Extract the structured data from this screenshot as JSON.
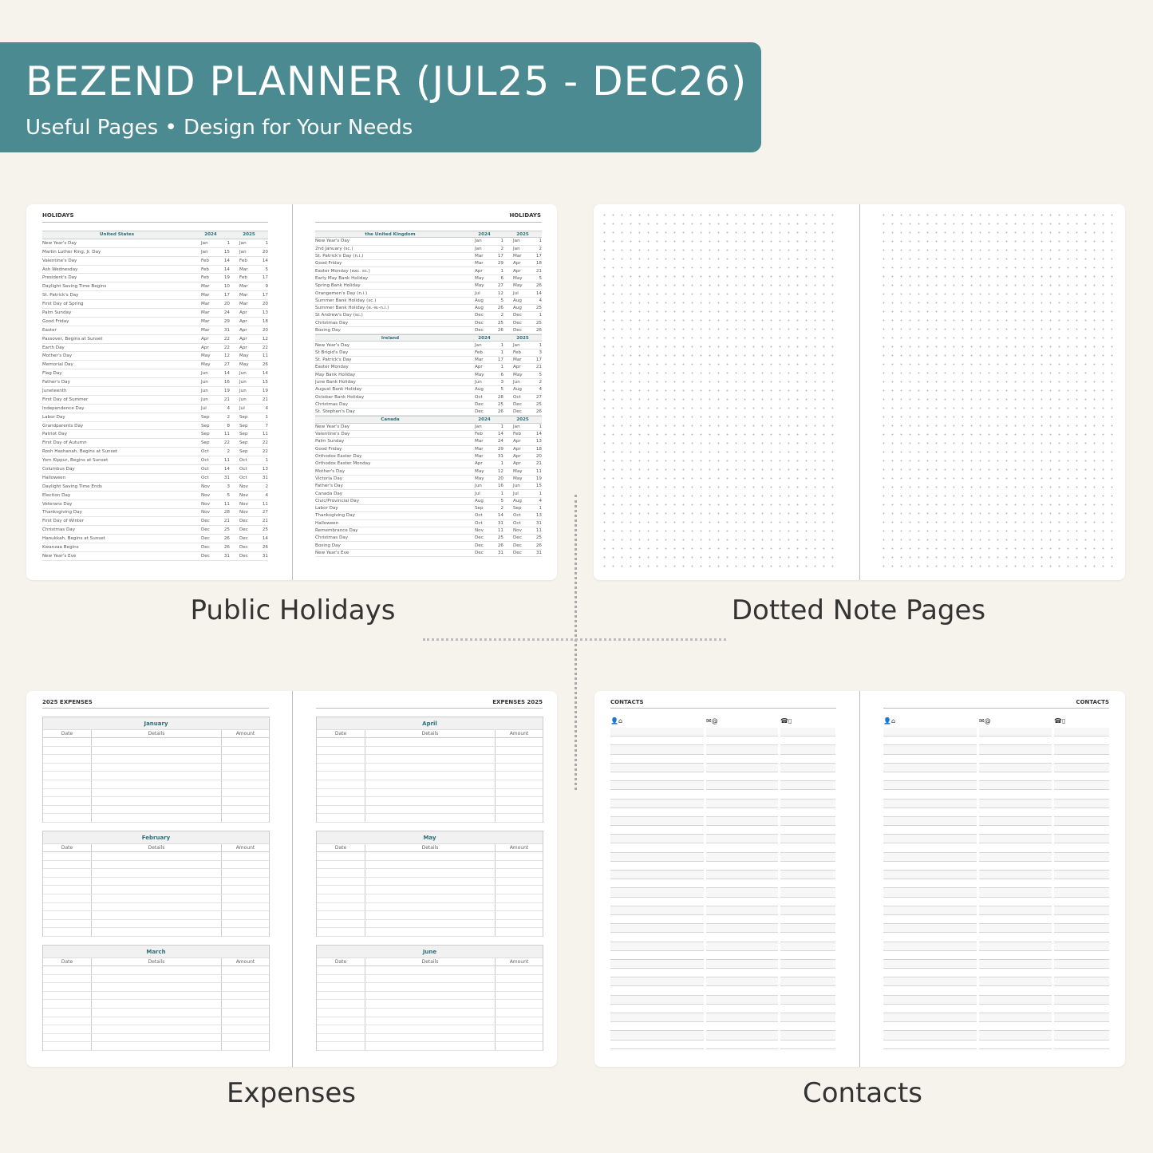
{
  "header": {
    "title": "BEZEND PLANNER (JUL25 - DEC26)",
    "subtitle": "Useful Pages  •  Design for Your Needs"
  },
  "colors": {
    "accent": "#4b8a91",
    "background": "#f6f3ec",
    "heading_teal": "#2d6f77"
  },
  "captions": {
    "holidays": "Public Holidays",
    "dotted": "Dotted Note Pages",
    "expenses": "Expenses",
    "contacts": "Contacts"
  },
  "holidays": {
    "page_title": "HOLIDAYS",
    "years": [
      "2024",
      "2025"
    ],
    "left": [
      {
        "country": "United States",
        "rows": [
          [
            "New Year's Day",
            "Jan",
            "1",
            "Jan",
            "1"
          ],
          [
            "Martin Luther King, Jr. Day",
            "Jan",
            "15",
            "Jan",
            "20"
          ],
          [
            "Valentine's Day",
            "Feb",
            "14",
            "Feb",
            "14"
          ],
          [
            "Ash Wednesday",
            "Feb",
            "14",
            "Mar",
            "5"
          ],
          [
            "President's Day",
            "Feb",
            "19",
            "Feb",
            "17"
          ],
          [
            "Daylight Saving Time Begins",
            "Mar",
            "10",
            "Mar",
            "9"
          ],
          [
            "St. Patrick's Day",
            "Mar",
            "17",
            "Mar",
            "17"
          ],
          [
            "First Day of Spring",
            "Mar",
            "20",
            "Mar",
            "20"
          ],
          [
            "Palm Sunday",
            "Mar",
            "24",
            "Apr",
            "13"
          ],
          [
            "Good Friday",
            "Mar",
            "29",
            "Apr",
            "18"
          ],
          [
            "Easter",
            "Mar",
            "31",
            "Apr",
            "20"
          ],
          [
            "Passover, Begins at Sunset",
            "Apr",
            "22",
            "Apr",
            "12"
          ],
          [
            "Earth Day",
            "Apr",
            "22",
            "Apr",
            "22"
          ],
          [
            "Mother's Day",
            "May",
            "12",
            "May",
            "11"
          ],
          [
            "Memorial Day",
            "May",
            "27",
            "May",
            "26"
          ],
          [
            "Flag Day",
            "Jun",
            "14",
            "Jun",
            "14"
          ],
          [
            "Father's Day",
            "Jun",
            "16",
            "Jun",
            "15"
          ],
          [
            "Juneteenth",
            "Jun",
            "19",
            "Jun",
            "19"
          ],
          [
            "First Day of Summer",
            "Jun",
            "21",
            "Jun",
            "21"
          ],
          [
            "Independence Day",
            "Jul",
            "4",
            "Jul",
            "4"
          ],
          [
            "Labor Day",
            "Sep",
            "2",
            "Sep",
            "1"
          ],
          [
            "Grandparents Day",
            "Sep",
            "8",
            "Sep",
            "7"
          ],
          [
            "Patriot Day",
            "Sep",
            "11",
            "Sep",
            "11"
          ],
          [
            "First Day of Autumn",
            "Sep",
            "22",
            "Sep",
            "22"
          ],
          [
            "Rosh Hashanah, Begins at Sunset",
            "Oct",
            "2",
            "Sep",
            "22"
          ],
          [
            "Yom Kippur, Begins at Sunset",
            "Oct",
            "11",
            "Oct",
            "1"
          ],
          [
            "Columbus Day",
            "Oct",
            "14",
            "Oct",
            "13"
          ],
          [
            "Halloween",
            "Oct",
            "31",
            "Oct",
            "31"
          ],
          [
            "Daylight Saving Time Ends",
            "Nov",
            "3",
            "Nov",
            "2"
          ],
          [
            "Election Day",
            "Nov",
            "5",
            "Nov",
            "4"
          ],
          [
            "Veterans Day",
            "Nov",
            "11",
            "Nov",
            "11"
          ],
          [
            "Thanksgiving Day",
            "Nov",
            "28",
            "Nov",
            "27"
          ],
          [
            "First Day of Winter",
            "Dec",
            "21",
            "Dec",
            "21"
          ],
          [
            "Christmas Day",
            "Dec",
            "25",
            "Dec",
            "25"
          ],
          [
            "Hanukkah, Begins at Sunset",
            "Dec",
            "26",
            "Dec",
            "14"
          ],
          [
            "Kwanzaa Begins",
            "Dec",
            "26",
            "Dec",
            "26"
          ],
          [
            "New Year's Eve",
            "Dec",
            "31",
            "Dec",
            "31"
          ]
        ]
      }
    ],
    "right": [
      {
        "country": "the United Kingdom",
        "rows": [
          [
            "New Year's Day",
            "Jan",
            "1",
            "Jan",
            "1"
          ],
          [
            "2nd January (sc.)",
            "Jan",
            "2",
            "Jan",
            "2"
          ],
          [
            "St. Patrick's Day (n.i.)",
            "Mar",
            "17",
            "Mar",
            "17"
          ],
          [
            "Good Friday",
            "Mar",
            "29",
            "Apr",
            "18"
          ],
          [
            "Easter Monday (exc. sc.)",
            "Apr",
            "1",
            "Apr",
            "21"
          ],
          [
            "Early May Bank Holiday",
            "May",
            "6",
            "May",
            "5"
          ],
          [
            "Spring Bank Holiday",
            "May",
            "27",
            "May",
            "26"
          ],
          [
            "Orangemen's Day (n.i.)",
            "Jul",
            "12",
            "Jul",
            "14"
          ],
          [
            "Summer Bank Holiday (sc.)",
            "Aug",
            "5",
            "Aug",
            "4"
          ],
          [
            "Summer Bank Holiday (e.-w.-n.i.)",
            "Aug",
            "26",
            "Aug",
            "25"
          ],
          [
            "St Andrew's Day (sc.)",
            "Dec",
            "2",
            "Dec",
            "1"
          ],
          [
            "Christmas Day",
            "Dec",
            "25",
            "Dec",
            "25"
          ],
          [
            "Boxing Day",
            "Dec",
            "26",
            "Dec",
            "26"
          ]
        ]
      },
      {
        "country": "Ireland",
        "rows": [
          [
            "New Year's Day",
            "Jan",
            "1",
            "Jan",
            "1"
          ],
          [
            "St Brigid's Day",
            "Feb",
            "1",
            "Feb",
            "3"
          ],
          [
            "St. Patrick's Day",
            "Mar",
            "17",
            "Mar",
            "17"
          ],
          [
            "Easter Monday",
            "Apr",
            "1",
            "Apr",
            "21"
          ],
          [
            "May Bank Holiday",
            "May",
            "6",
            "May",
            "5"
          ],
          [
            "June Bank Holiday",
            "Jun",
            "3",
            "Jun",
            "2"
          ],
          [
            "August Bank Holiday",
            "Aug",
            "5",
            "Aug",
            "4"
          ],
          [
            "October Bank Holiday",
            "Oct",
            "28",
            "Oct",
            "27"
          ],
          [
            "Christmas Day",
            "Dec",
            "25",
            "Dec",
            "25"
          ],
          [
            "St. Stephen's Day",
            "Dec",
            "26",
            "Dec",
            "26"
          ]
        ]
      },
      {
        "country": "Canada",
        "rows": [
          [
            "New Year's Day",
            "Jan",
            "1",
            "Jan",
            "1"
          ],
          [
            "Valentine's Day",
            "Feb",
            "14",
            "Feb",
            "14"
          ],
          [
            "Palm Sunday",
            "Mar",
            "24",
            "Apr",
            "13"
          ],
          [
            "Good Friday",
            "Mar",
            "29",
            "Apr",
            "18"
          ],
          [
            "Orthodox Easter Day",
            "Mar",
            "31",
            "Apr",
            "20"
          ],
          [
            "Orthodox Easter Monday",
            "Apr",
            "1",
            "Apr",
            "21"
          ],
          [
            "Mother's Day",
            "May",
            "12",
            "May",
            "11"
          ],
          [
            "Victoria Day",
            "May",
            "20",
            "May",
            "19"
          ],
          [
            "Father's Day",
            "Jun",
            "16",
            "Jun",
            "15"
          ],
          [
            "Canada Day",
            "Jul",
            "1",
            "Jul",
            "1"
          ],
          [
            "Civic/Provincial Day",
            "Aug",
            "5",
            "Aug",
            "4"
          ],
          [
            "Labor Day",
            "Sep",
            "2",
            "Sep",
            "1"
          ],
          [
            "Thanksgiving Day",
            "Oct",
            "14",
            "Oct",
            "13"
          ],
          [
            "Halloween",
            "Oct",
            "31",
            "Oct",
            "31"
          ],
          [
            "Remembrance Day",
            "Nov",
            "11",
            "Nov",
            "11"
          ],
          [
            "Christmas Day",
            "Dec",
            "25",
            "Dec",
            "25"
          ],
          [
            "Boxing Day",
            "Dec",
            "26",
            "Dec",
            "26"
          ],
          [
            "New Year's Eve",
            "Dec",
            "31",
            "Dec",
            "31"
          ]
        ]
      }
    ]
  },
  "expenses": {
    "left_title": "2025 EXPENSES",
    "right_title": "EXPENSES 2025",
    "columns": [
      "Date",
      "Details",
      "Amount"
    ],
    "left_months": [
      "January",
      "February",
      "March"
    ],
    "right_months": [
      "April",
      "May",
      "June"
    ]
  },
  "contacts": {
    "title": "CONTACTS",
    "icons": [
      "person-home-icon",
      "mail-at-icon",
      "phone-mobile-icon"
    ],
    "icon_glyphs": [
      "👤⌂",
      "✉@",
      "☎▯"
    ]
  }
}
